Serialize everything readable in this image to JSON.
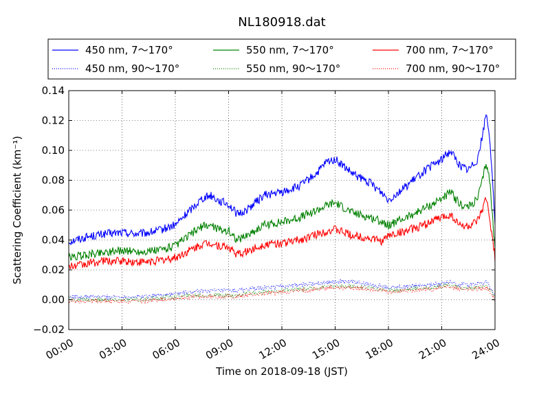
{
  "chart_data": {
    "type": "line",
    "title": "NL180918.dat",
    "xlabel": "Time on 2018-09-18 (JST)",
    "ylabel": "Scattering Coefficient (km⁻¹)",
    "xlim": [
      0,
      24
    ],
    "ylim": [
      -0.02,
      0.14
    ],
    "x_ticks": [
      0,
      3,
      6,
      9,
      12,
      15,
      18,
      21,
      24
    ],
    "x_tick_labels": [
      "00:00",
      "03:00",
      "06:00",
      "09:00",
      "12:00",
      "15:00",
      "18:00",
      "21:00",
      "24:00"
    ],
    "y_ticks": [
      -0.02,
      0.0,
      0.02,
      0.04,
      0.06,
      0.08,
      0.1,
      0.12,
      0.14
    ],
    "y_tick_labels": [
      "−0.02",
      "0.00",
      "0.02",
      "0.04",
      "0.06",
      "0.08",
      "0.10",
      "0.12",
      "0.14"
    ],
    "grid": true,
    "legend_placement": "top, outside plot, 3 columns",
    "x": [
      0,
      1,
      2,
      3,
      4,
      5,
      6,
      7,
      7.5,
      8,
      8.5,
      9,
      9.5,
      10,
      11,
      12,
      13,
      14,
      14.5,
      15,
      16,
      17,
      17.7,
      18,
      19,
      20,
      20.5,
      21,
      21.5,
      22,
      22.5,
      23,
      23.3,
      23.5,
      23.7,
      24
    ],
    "series": [
      {
        "name": "450 nm, 7～170°",
        "color": "#0000ff",
        "style": "solid",
        "values": [
          0.039,
          0.042,
          0.044,
          0.045,
          0.044,
          0.046,
          0.05,
          0.062,
          0.068,
          0.07,
          0.066,
          0.064,
          0.057,
          0.06,
          0.07,
          0.072,
          0.076,
          0.085,
          0.092,
          0.094,
          0.084,
          0.078,
          0.071,
          0.067,
          0.076,
          0.086,
          0.09,
          0.094,
          0.1,
          0.09,
          0.087,
          0.094,
          0.11,
          0.125,
          0.11,
          0.05
        ]
      },
      {
        "name": "450 nm, 90～170°",
        "color": "#0000ff",
        "style": "dotted",
        "values": [
          0.002,
          0.002,
          0.002,
          0.002,
          0.002,
          0.003,
          0.004,
          0.005,
          0.006,
          0.006,
          0.006,
          0.006,
          0.006,
          0.007,
          0.008,
          0.009,
          0.01,
          0.011,
          0.012,
          0.012,
          0.012,
          0.01,
          0.009,
          0.008,
          0.009,
          0.01,
          0.01,
          0.011,
          0.012,
          0.01,
          0.01,
          0.011,
          0.011,
          0.012,
          0.009,
          0.002
        ]
      },
      {
        "name": "550 nm, 7～170°",
        "color": "#008000",
        "style": "solid",
        "values": [
          0.028,
          0.03,
          0.032,
          0.033,
          0.032,
          0.033,
          0.036,
          0.045,
          0.049,
          0.05,
          0.047,
          0.046,
          0.04,
          0.043,
          0.05,
          0.052,
          0.055,
          0.06,
          0.063,
          0.065,
          0.058,
          0.055,
          0.052,
          0.05,
          0.055,
          0.061,
          0.064,
          0.068,
          0.072,
          0.064,
          0.062,
          0.067,
          0.08,
          0.092,
          0.08,
          0.033
        ]
      },
      {
        "name": "550 nm, 90～170°",
        "color": "#008000",
        "style": "dotted",
        "values": [
          0.0,
          0.0,
          0.0,
          0.0,
          0.0,
          0.001,
          0.002,
          0.003,
          0.003,
          0.003,
          0.003,
          0.003,
          0.003,
          0.004,
          0.005,
          0.006,
          0.007,
          0.008,
          0.009,
          0.009,
          0.009,
          0.008,
          0.007,
          0.006,
          0.007,
          0.008,
          0.008,
          0.009,
          0.01,
          0.008,
          0.008,
          0.008,
          0.009,
          0.009,
          0.007,
          0.001
        ]
      },
      {
        "name": "700 nm, 7～170°",
        "color": "#ff0000",
        "style": "solid",
        "values": [
          0.022,
          0.024,
          0.026,
          0.026,
          0.025,
          0.026,
          0.028,
          0.034,
          0.037,
          0.038,
          0.036,
          0.035,
          0.03,
          0.032,
          0.037,
          0.038,
          0.04,
          0.044,
          0.046,
          0.047,
          0.043,
          0.041,
          0.039,
          0.043,
          0.046,
          0.05,
          0.053,
          0.055,
          0.057,
          0.05,
          0.049,
          0.052,
          0.06,
          0.068,
          0.055,
          0.028
        ]
      },
      {
        "name": "700 nm, 90～170°",
        "color": "#ff0000",
        "style": "dotted",
        "values": [
          -0.001,
          -0.001,
          -0.001,
          -0.001,
          -0.001,
          0.0,
          0.001,
          0.002,
          0.002,
          0.002,
          0.002,
          0.002,
          0.002,
          0.003,
          0.004,
          0.005,
          0.006,
          0.007,
          0.008,
          0.008,
          0.008,
          0.007,
          0.006,
          0.005,
          0.006,
          0.007,
          0.007,
          0.008,
          0.009,
          0.007,
          0.007,
          0.007,
          0.008,
          0.008,
          0.006,
          0.0
        ]
      }
    ]
  }
}
